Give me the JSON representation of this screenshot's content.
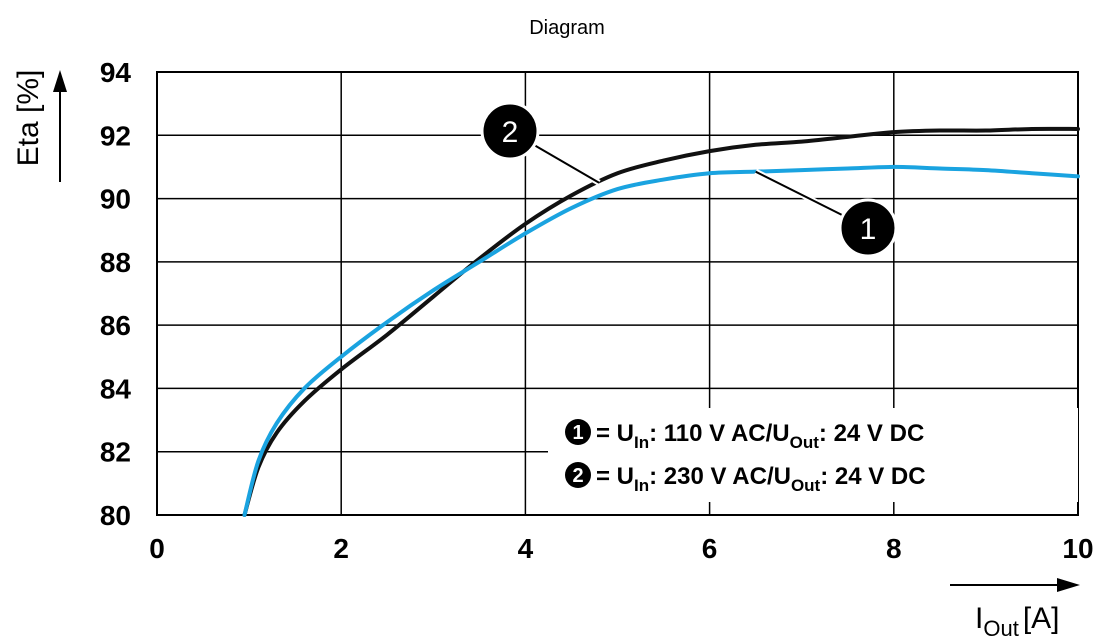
{
  "chart_data": {
    "type": "line",
    "title": "Diagram",
    "xlabel": {
      "main": "I",
      "sub": "Out",
      "unit": "[A]"
    },
    "ylabel": "Eta [%]",
    "xlim": [
      0,
      10
    ],
    "ylim": [
      80,
      94
    ],
    "x_ticks": [
      0,
      2,
      4,
      6,
      8,
      10
    ],
    "y_ticks": [
      80,
      82,
      84,
      86,
      88,
      90,
      92,
      94
    ],
    "grid": true,
    "series": [
      {
        "marker": "1",
        "color": "#1aa3e0",
        "x": [
          0.95,
          1.1,
          1.3,
          1.6,
          2.0,
          2.5,
          3.0,
          3.5,
          4.0,
          4.5,
          5.0,
          5.5,
          6.0,
          6.5,
          7.0,
          7.5,
          8.0,
          8.5,
          9.0,
          9.5,
          10.0
        ],
        "y": [
          80.0,
          81.7,
          82.9,
          84.0,
          85.0,
          86.1,
          87.1,
          88.0,
          88.9,
          89.7,
          90.3,
          90.6,
          90.8,
          90.85,
          90.9,
          90.95,
          91.0,
          90.95,
          90.9,
          90.8,
          90.7
        ]
      },
      {
        "marker": "2",
        "color": "#111111",
        "x": [
          0.95,
          1.1,
          1.3,
          1.6,
          2.0,
          2.5,
          3.0,
          3.5,
          4.0,
          4.5,
          5.0,
          5.5,
          6.0,
          6.5,
          7.0,
          7.5,
          8.0,
          8.5,
          9.0,
          9.5,
          10.0
        ],
        "y": [
          80.0,
          81.5,
          82.6,
          83.6,
          84.6,
          85.7,
          86.9,
          88.1,
          89.2,
          90.1,
          90.8,
          91.2,
          91.5,
          91.7,
          91.8,
          91.95,
          92.1,
          92.15,
          92.15,
          92.2,
          92.2
        ]
      }
    ],
    "annotations": [
      {
        "label": "1",
        "point": [
          6.5,
          90.85
        ]
      },
      {
        "label": "2",
        "point": [
          4.8,
          90.5
        ]
      }
    ],
    "legend": {
      "placement": "bottom-right",
      "entries": [
        {
          "marker": "1",
          "text_a": "= U",
          "sub_a": "In",
          "text_b": ": 110 V AC/U",
          "sub_b": "Out",
          "text_c": ": 24 V DC"
        },
        {
          "marker": "2",
          "text_a": "= U",
          "sub_a": "In",
          "text_b": ": 230 V AC/U",
          "sub_b": "Out",
          "text_c": ": 24 V DC"
        }
      ]
    }
  }
}
